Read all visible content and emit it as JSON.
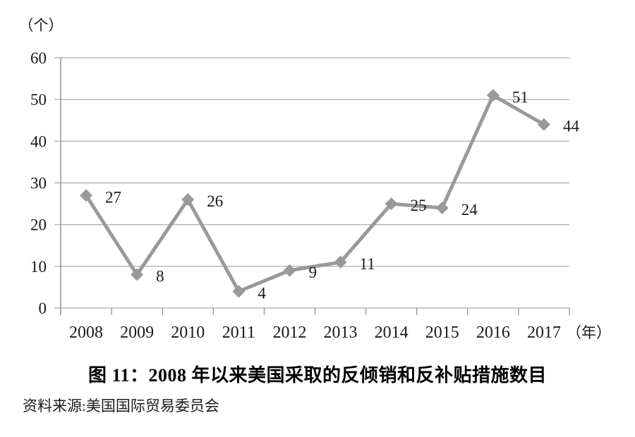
{
  "chart_data": {
    "type": "line",
    "categories": [
      "2008",
      "2009",
      "2010",
      "2011",
      "2012",
      "2013",
      "2014",
      "2015",
      "2016",
      "2017"
    ],
    "values": [
      27,
      8,
      26,
      4,
      9,
      11,
      25,
      24,
      51,
      44
    ],
    "title": "图 11：2008 年以来美国采取的反倾销和反补贴措施数目",
    "source": "资料来源:美国国际贸易委员会",
    "ylabel": "（个）",
    "xlabel": "（年）",
    "ylim": [
      0,
      60
    ],
    "yticks": [
      0,
      10,
      20,
      30,
      40,
      50,
      60
    ],
    "grid": true,
    "legend_position": "none",
    "data_labels": true,
    "colors": {
      "line": "#999999",
      "marker": "#999999",
      "gridline": "#a6a6a6",
      "axis": "#8c8c8c",
      "text": "#1a1a1a"
    }
  }
}
